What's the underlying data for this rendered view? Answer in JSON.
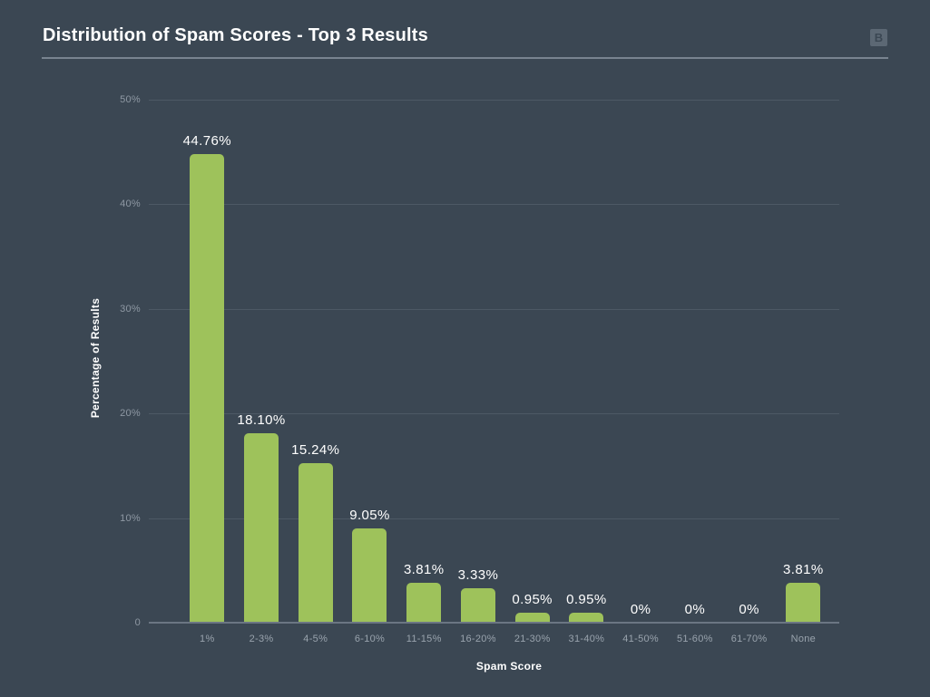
{
  "header": {
    "title": "Distribution of Spam Scores - Top 3 Results",
    "logo_label": "B"
  },
  "chart_data": {
    "type": "bar",
    "title": "Distribution of Spam Scores - Top 3 Results",
    "categories": [
      "1%",
      "2-3%",
      "4-5%",
      "6-10%",
      "11-15%",
      "16-20%",
      "21-30%",
      "31-40%",
      "41-50%",
      "51-60%",
      "61-70%",
      "None"
    ],
    "values": [
      44.76,
      18.1,
      15.24,
      9.05,
      3.81,
      3.33,
      0.95,
      0.95,
      0,
      0,
      0,
      3.81
    ],
    "value_labels": [
      "44.76%",
      "18.10%",
      "15.24%",
      "9.05%",
      "3.81%",
      "3.33%",
      "0.95%",
      "0.95%",
      "0%",
      "0%",
      "0%",
      "3.81%"
    ],
    "xlabel": "Spam Score",
    "ylabel": "Percentage of Results",
    "ylim": [
      0,
      50
    ],
    "yticks": [
      0,
      10,
      20,
      30,
      40,
      50
    ],
    "ytick_labels": [
      "0",
      "10%",
      "20%",
      "30%",
      "40%",
      "50%"
    ],
    "grid": true,
    "legend": "none",
    "colors": {
      "bar": "#9ec25b",
      "background": "#3b4753",
      "gridline": "#4d5965",
      "axis_line": "#6b7683",
      "tick_label": "#99a3ad",
      "value_label": "#ffffff",
      "axis_title": "#ffffff"
    }
  }
}
